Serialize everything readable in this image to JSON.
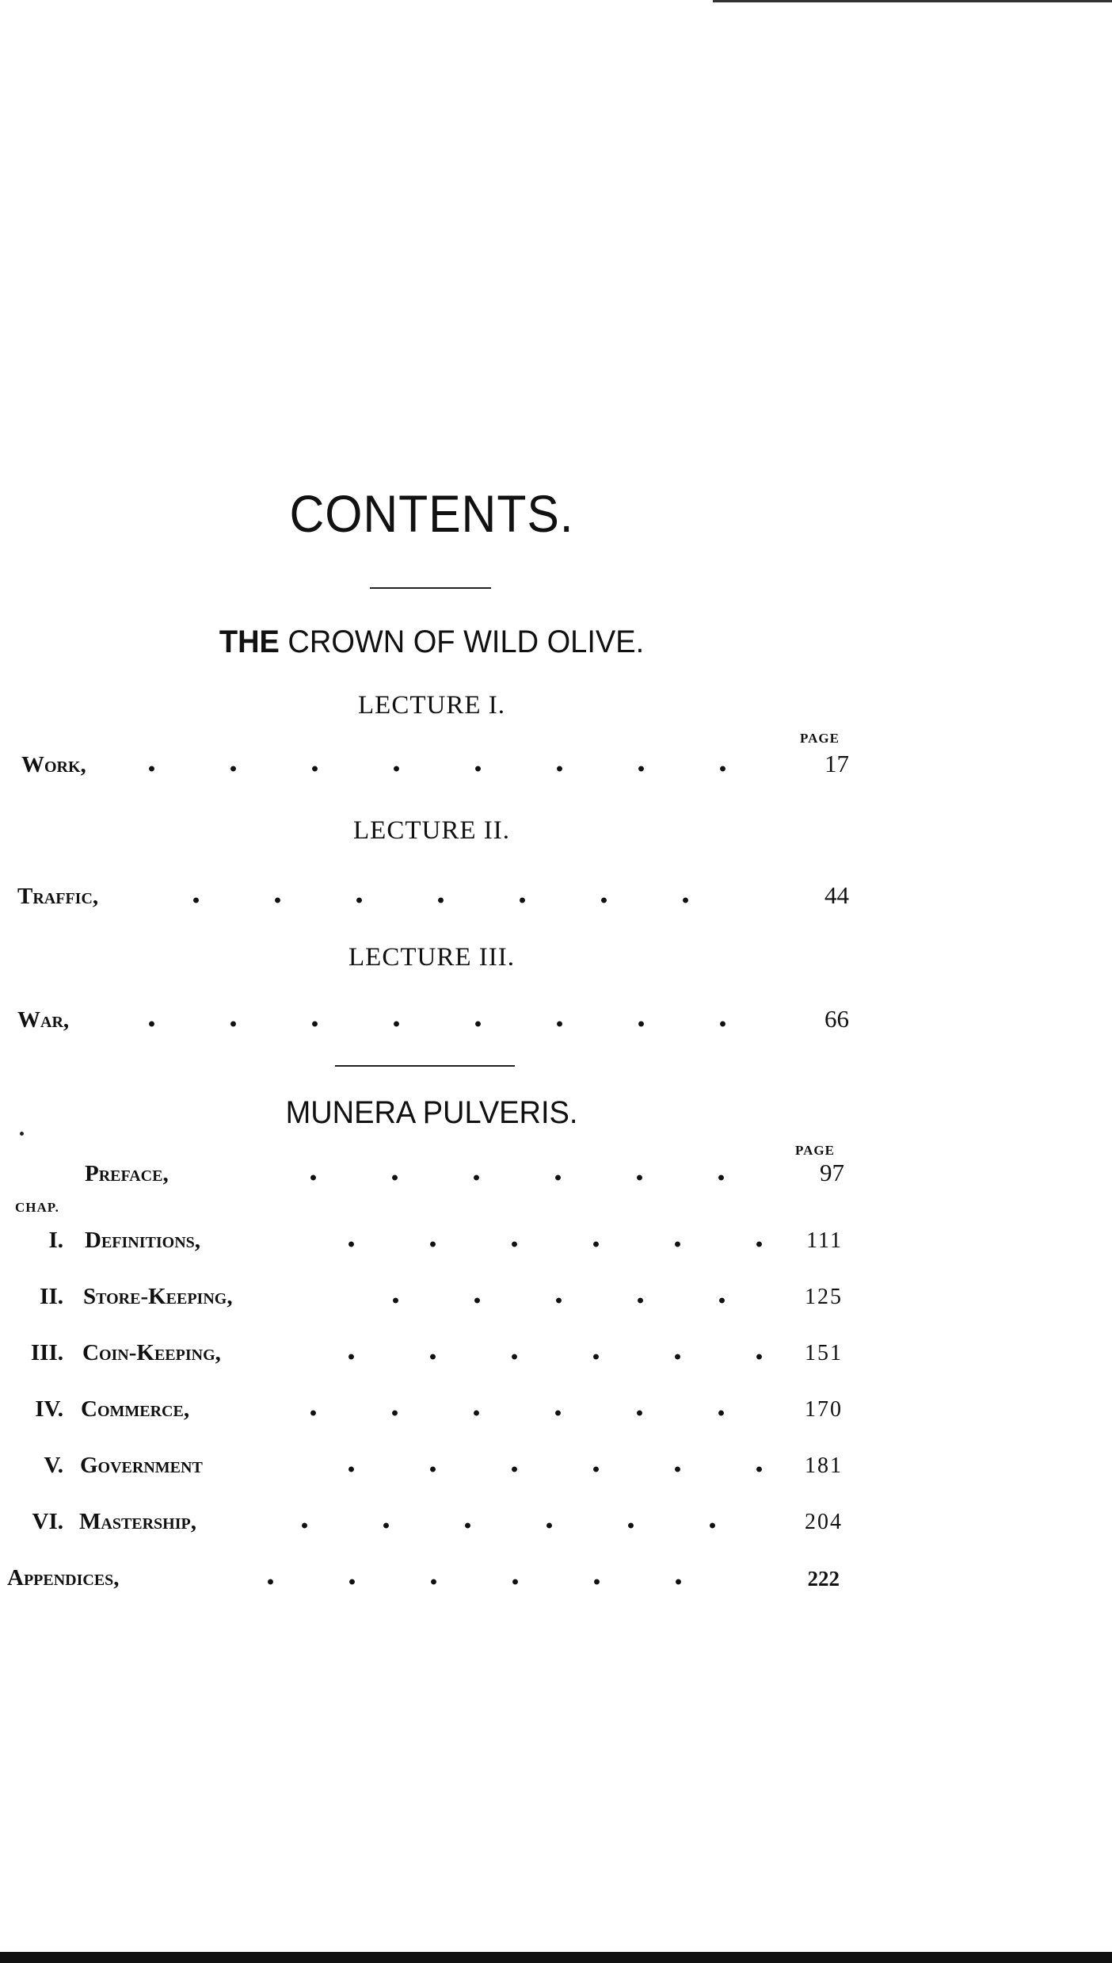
{
  "title": "CONTENTS.",
  "part1": {
    "title_bold": "THE",
    "title_rest": "CROWN OF WILD OLIVE.",
    "page_header": "PAGE",
    "lectures": [
      {
        "heading": "LECTURE I.",
        "entry": "Work,",
        "page": "17"
      },
      {
        "heading": "LECTURE II.",
        "entry": "Traffic,",
        "page": "44"
      },
      {
        "heading": "LECTURE III.",
        "entry": "War,",
        "page": "66"
      }
    ]
  },
  "part2": {
    "title": "MUNERA PULVERIS.",
    "page_header": "PAGE",
    "preface": {
      "entry": "Preface,",
      "page": "97"
    },
    "chap_label": "CHAP.",
    "chapters": [
      {
        "numeral": "I.",
        "entry": "Definitions,",
        "page": "111"
      },
      {
        "numeral": "II.",
        "entry": "Store-Keeping,",
        "page": "125"
      },
      {
        "numeral": "III.",
        "entry": "Coin-Keeping,",
        "page": "151"
      },
      {
        "numeral": "IV.",
        "entry": "Commerce,",
        "page": "170"
      },
      {
        "numeral": "V.",
        "entry": "Government",
        "page": "181"
      },
      {
        "numeral": "VI.",
        "entry": "Mastership,",
        "page": "204"
      }
    ],
    "appendices": {
      "entry": "Appendices,",
      "page": "222"
    }
  }
}
